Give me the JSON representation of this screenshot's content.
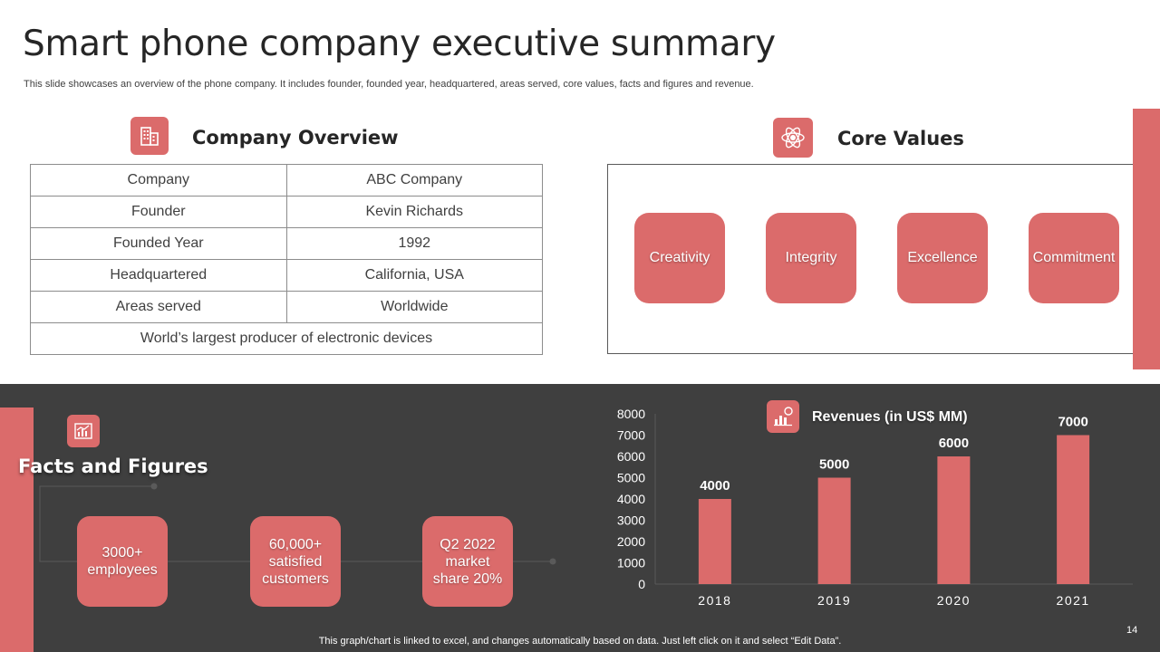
{
  "header": {
    "title": "Smart phone company executive summary",
    "subtitle": "This slide showcases an overview of the phone company. It includes founder, founded year, headquartered, areas served, core values, facts and figures and revenue."
  },
  "overview": {
    "heading": "Company Overview",
    "icon": "building-icon",
    "rows": [
      [
        "Company",
        "ABC Company"
      ],
      [
        "Founder",
        "Kevin Richards"
      ],
      [
        "Founded Year",
        "1992"
      ],
      [
        "Headquartered",
        "California, USA"
      ],
      [
        "Areas served",
        "Worldwide"
      ]
    ],
    "footer_row": "World’s largest producer of electronic devices"
  },
  "core_values": {
    "heading": "Core Values",
    "icon": "atom-icon",
    "items": [
      "Creativity",
      "Integrity",
      "Excellence",
      "Commitment"
    ]
  },
  "facts": {
    "heading": "Facts and Figures",
    "icon": "chart-icon",
    "items": [
      "3000+ employees",
      "60,000+ satisfied customers",
      "Q2 2022 market share 20%"
    ]
  },
  "chart_data": {
    "type": "bar",
    "title": "Revenues (in US$ MM)",
    "categories": [
      "2018",
      "2019",
      "2020",
      "2021"
    ],
    "values": [
      4000,
      5000,
      6000,
      7000
    ],
    "yticks": [
      "0",
      "1000",
      "2000",
      "3000",
      "4000",
      "5000",
      "6000",
      "7000",
      "8000"
    ],
    "ylim": [
      0,
      8000
    ],
    "xlabel": "",
    "ylabel": "",
    "bar_color": "#db6b6b"
  },
  "footer": {
    "note": "This graph/chart is linked to excel, and changes automatically based on data. Just left click on it and select “Edit Data”.",
    "page": "14"
  },
  "colors": {
    "accent": "#db6b6b",
    "dark": "#3f3f3f"
  }
}
